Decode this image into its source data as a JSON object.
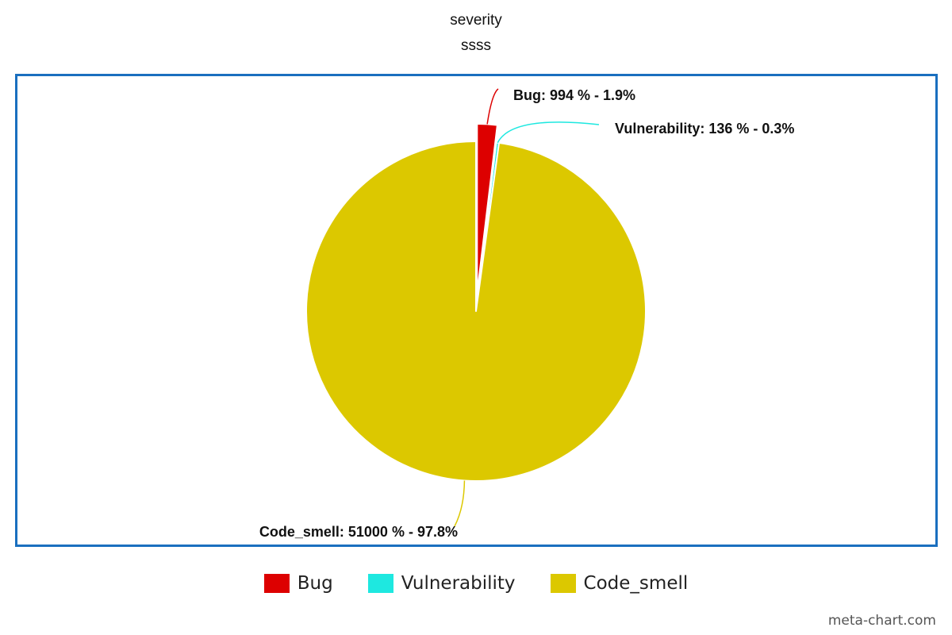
{
  "chart_data": {
    "type": "pie",
    "title": "severity",
    "subtitle": "ssss",
    "slices": [
      {
        "name": "Bug",
        "value": 994,
        "percent": 1.9,
        "color": "#dd0000",
        "label": "Bug: 994 % - 1.9%"
      },
      {
        "name": "Vulnerability",
        "value": 136,
        "percent": 0.3,
        "color": "#1ee8e0",
        "label": "Vulnerability: 136 % - 0.3%"
      },
      {
        "name": "Code_smell",
        "value": 51000,
        "percent": 97.8,
        "color": "#dcc800",
        "label": "Code_smell: 51000 % - 97.8%"
      }
    ],
    "legend": {
      "position": "bottom"
    },
    "colors": {
      "frame_border": "#1a6fbf"
    }
  },
  "watermark": "meta-chart.com"
}
